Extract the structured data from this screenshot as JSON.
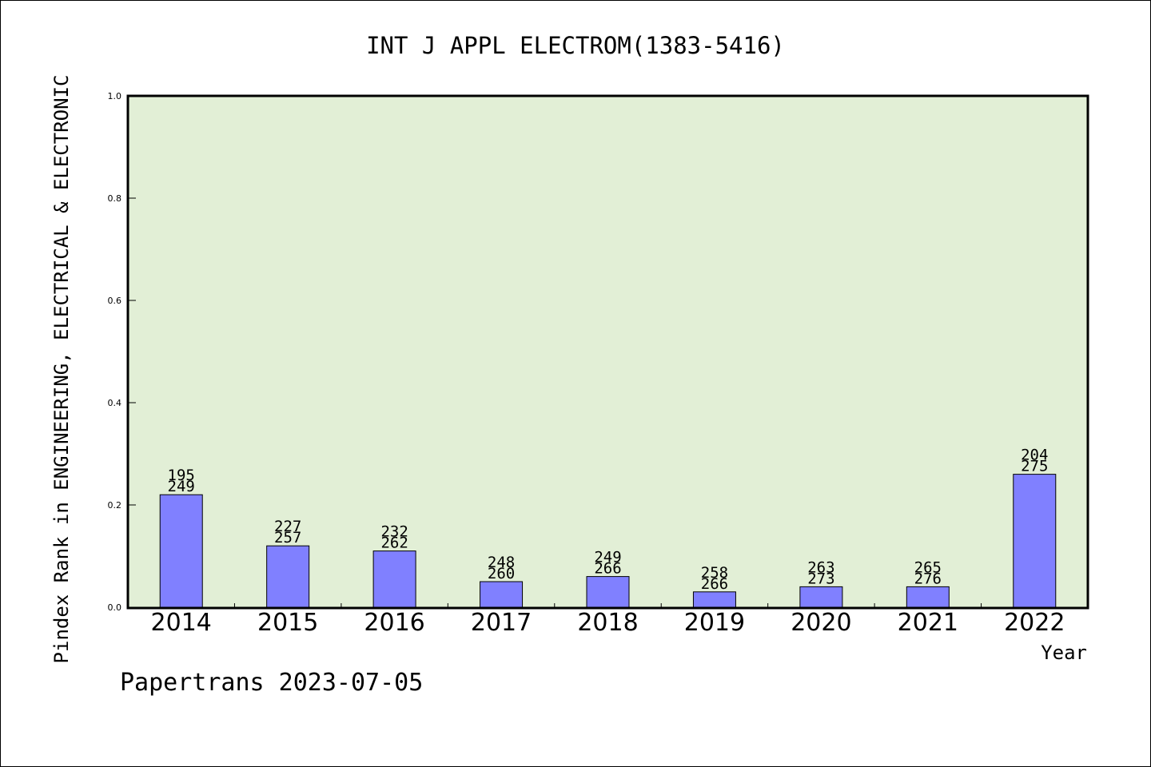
{
  "chart_data": {
    "type": "bar",
    "title": "INT J APPL ELECTROM(1383-5416)",
    "ylabel": "Pindex Rank in ENGINEERING, ELECTRICAL & ELECTRONIC",
    "xlabel": "Year",
    "categories": [
      "2014",
      "2015",
      "2016",
      "2017",
      "2018",
      "2019",
      "2020",
      "2021",
      "2022"
    ],
    "values": [
      0.22,
      0.12,
      0.11,
      0.05,
      0.06,
      0.03,
      0.04,
      0.04,
      0.26
    ],
    "rank_labels": [
      "195",
      "227",
      "232",
      "248",
      "249",
      "258",
      "263",
      "265",
      "204"
    ],
    "total_labels": [
      "249",
      "257",
      "262",
      "260",
      "266",
      "266",
      "273",
      "276",
      "275"
    ],
    "ylim": [
      0,
      1.0
    ],
    "yticks": [
      "0.0",
      "0.2",
      "0.4",
      "0.6",
      "0.8",
      "1.0"
    ],
    "grid": false,
    "colors": {
      "bar": "#8080ff",
      "plot_background": "#e2efd6"
    }
  },
  "footer": {
    "credit": "Papertrans 2023-07-05"
  }
}
